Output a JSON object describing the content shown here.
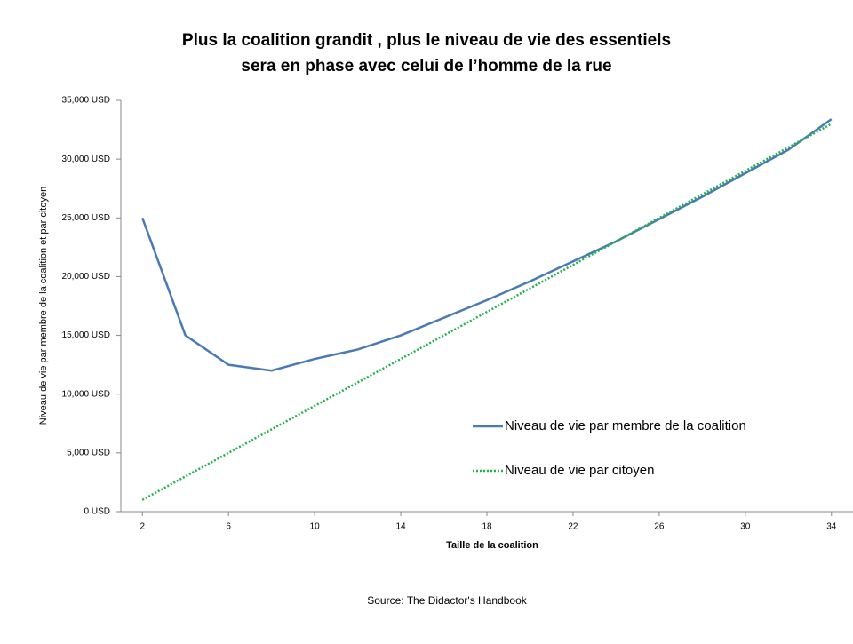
{
  "chart_data": {
    "type": "line",
    "title": [
      "Plus la coalition grandit , plus le niveau de vie des essentiels",
      "sera en phase avec celui de l’homme de la rue"
    ],
    "x_label": "Taille  de la coalition",
    "y_label": "Niveau de vie par membre de la coalition et par citoyen",
    "source": "Source: The Didactor's Handbook",
    "x": [
      2,
      4,
      6,
      8,
      10,
      12,
      14,
      16,
      18,
      20,
      22,
      24,
      26,
      28,
      30,
      32,
      34
    ],
    "series": [
      {
        "name": "Niveau de vie par membre de la coalition",
        "color": "#4a7ab5",
        "style": "solid",
        "values": [
          25000,
          15000,
          12500,
          12000,
          13000,
          13800,
          15000,
          16500,
          18000,
          19600,
          21300,
          23000,
          24900,
          26800,
          28800,
          30800,
          33400
        ]
      },
      {
        "name": "Niveau de vie par citoyen",
        "color": "#22b14c",
        "style": "dotted",
        "values": [
          1000,
          3000,
          5000,
          7000,
          9000,
          11000,
          13000,
          15000,
          17000,
          19000,
          21000,
          23000,
          25000,
          27000,
          29000,
          31000,
          33000
        ]
      }
    ],
    "xlim": [
      1,
      35
    ],
    "xticks": [
      2,
      6,
      10,
      14,
      18,
      22,
      26,
      30,
      34
    ],
    "ylim": [
      0,
      35000
    ],
    "yticks": [
      {
        "value": 0,
        "label": "0 USD"
      },
      {
        "value": 5000,
        "label": "5,000 USD"
      },
      {
        "value": 10000,
        "label": "10,000 USD"
      },
      {
        "value": 15000,
        "label": "15,000 USD"
      },
      {
        "value": 20000,
        "label": "20,000 USD"
      },
      {
        "value": 25000,
        "label": "25,000 USD"
      },
      {
        "value": 30000,
        "label": "30,000 USD"
      },
      {
        "value": 35000,
        "label": "35,000 USD"
      }
    ],
    "grid": false,
    "legend": "lower right"
  }
}
